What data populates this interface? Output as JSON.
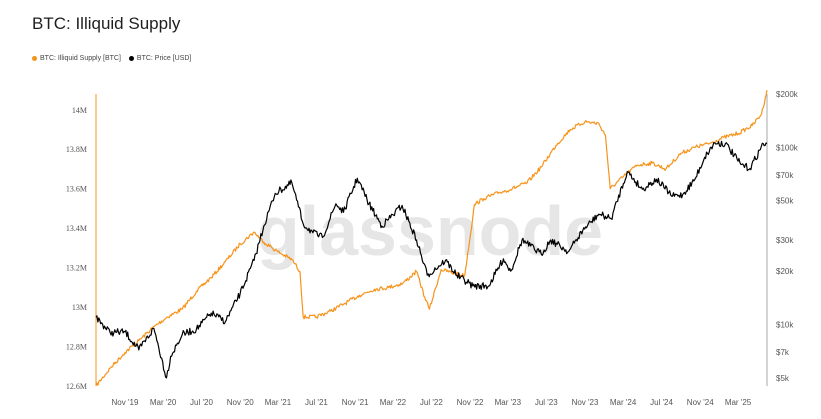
{
  "title": "BTC: Illiquid Supply",
  "watermark": "glassnode",
  "chart_data": {
    "type": "line",
    "title": "BTC: Illiquid Supply",
    "legend_position": "top-left",
    "grid": false,
    "x_ticks": [
      "Nov '19",
      "Mar '20",
      "Jul '20",
      "Nov '20",
      "Mar '21",
      "Jul '21",
      "Nov '21",
      "Mar '22",
      "Jul '22",
      "Nov '22",
      "Mar '23",
      "Jul '23",
      "Nov '23",
      "Mar '24",
      "Jul '24",
      "Nov '24",
      "Mar '25"
    ],
    "x_tick_dates": [
      "2019-11-01",
      "2020-03-01",
      "2020-07-01",
      "2020-11-01",
      "2021-03-01",
      "2021-07-01",
      "2021-11-01",
      "2022-03-01",
      "2022-07-01",
      "2022-11-01",
      "2023-03-01",
      "2023-07-01",
      "2023-11-01",
      "2024-03-01",
      "2024-07-01",
      "2024-11-01",
      "2025-03-01"
    ],
    "x_range": [
      "2019-08-01",
      "2025-06-01"
    ],
    "y_left": {
      "ticks": [
        12600000,
        12800000,
        13000000,
        13200000,
        13400000,
        13600000,
        13800000,
        14000000
      ],
      "tick_labels": [
        "12.6M",
        "12.8M",
        "13M",
        "13.2M",
        "13.4M",
        "13.6M",
        "13.8M",
        "14M"
      ],
      "range": [
        12600000,
        14080000
      ]
    },
    "y_right": {
      "scale": "log",
      "ticks": [
        5000,
        7000,
        10000,
        20000,
        30000,
        50000,
        70000,
        100000,
        200000
      ],
      "tick_labels": [
        "$5k",
        "$7k",
        "$10k",
        "$20k",
        "$30k",
        "$50k",
        "$70k",
        "$100k",
        "$200k"
      ],
      "range": [
        4500,
        200000
      ]
    },
    "series": [
      {
        "name": "BTC: Illiquid Supply [BTC]",
        "color": "#f7931a",
        "axis": "left",
        "x": [
          "2019-08-01",
          "2019-09-15",
          "2019-11-01",
          "2019-12-15",
          "2020-02-01",
          "2020-03-15",
          "2020-05-01",
          "2020-06-15",
          "2020-08-01",
          "2020-09-15",
          "2020-11-01",
          "2020-12-15",
          "2021-01-15",
          "2021-03-01",
          "2021-04-15",
          "2021-05-10",
          "2021-05-20",
          "2021-07-01",
          "2021-08-15",
          "2021-10-01",
          "2021-11-15",
          "2022-01-01",
          "2022-02-15",
          "2022-04-01",
          "2022-05-15",
          "2022-06-10",
          "2022-06-25",
          "2022-08-01",
          "2022-09-15",
          "2022-10-15",
          "2022-11-15",
          "2022-12-15",
          "2023-02-01",
          "2023-03-15",
          "2023-05-01",
          "2023-06-15",
          "2023-08-01",
          "2023-09-15",
          "2023-11-01",
          "2023-12-15",
          "2024-01-05",
          "2024-01-20",
          "2024-03-01",
          "2024-04-15",
          "2024-06-01",
          "2024-07-15",
          "2024-09-01",
          "2024-10-15",
          "2024-12-01",
          "2025-01-15",
          "2025-03-01",
          "2025-04-15",
          "2025-05-15",
          "2025-06-01"
        ],
        "values": [
          12600000,
          12690000,
          12770000,
          12830000,
          12900000,
          12950000,
          12990000,
          13080000,
          13150000,
          13230000,
          13320000,
          13380000,
          13330000,
          13280000,
          13240000,
          13180000,
          12950000,
          12950000,
          12980000,
          13020000,
          13060000,
          13090000,
          13100000,
          13120000,
          13180000,
          13050000,
          12990000,
          13190000,
          13170000,
          13160000,
          13520000,
          13550000,
          13580000,
          13600000,
          13630000,
          13710000,
          13820000,
          13900000,
          13940000,
          13930000,
          13870000,
          13600000,
          13660000,
          13720000,
          13730000,
          13700000,
          13780000,
          13810000,
          13830000,
          13860000,
          13880000,
          13920000,
          13980000,
          14100000
        ]
      },
      {
        "name": "BTC: Price [USD]",
        "color": "#000000",
        "axis": "right",
        "x": [
          "2019-08-01",
          "2019-09-15",
          "2019-11-01",
          "2019-12-15",
          "2020-02-01",
          "2020-03-12",
          "2020-03-25",
          "2020-05-01",
          "2020-06-15",
          "2020-08-01",
          "2020-09-15",
          "2020-11-01",
          "2020-12-15",
          "2021-01-15",
          "2021-02-20",
          "2021-04-14",
          "2021-05-20",
          "2021-06-20",
          "2021-07-20",
          "2021-09-01",
          "2021-09-25",
          "2021-11-08",
          "2021-12-15",
          "2022-01-25",
          "2022-03-30",
          "2022-05-15",
          "2022-06-18",
          "2022-08-15",
          "2022-09-20",
          "2022-11-10",
          "2022-12-30",
          "2023-02-15",
          "2023-03-10",
          "2023-04-15",
          "2023-06-15",
          "2023-07-15",
          "2023-09-10",
          "2023-10-25",
          "2023-12-15",
          "2024-01-23",
          "2024-03-14",
          "2024-05-01",
          "2024-06-15",
          "2024-08-05",
          "2024-09-06",
          "2024-10-15",
          "2024-11-15",
          "2024-12-17",
          "2025-01-20",
          "2025-03-10",
          "2025-04-08",
          "2025-05-20",
          "2025-06-01"
        ],
        "values": [
          11000,
          9000,
          9100,
          7200,
          9500,
          5000,
          6600,
          8800,
          9400,
          11600,
          10400,
          15000,
          23000,
          36000,
          55000,
          63000,
          37000,
          33000,
          31000,
          48000,
          43000,
          67000,
          48000,
          36000,
          47000,
          30000,
          19000,
          23000,
          19000,
          16500,
          16500,
          23500,
          20000,
          30000,
          25000,
          30000,
          25800,
          34000,
          42000,
          39500,
          73000,
          58000,
          66000,
          53000,
          54000,
          66000,
          88000,
          106000,
          105000,
          80000,
          76000,
          105000,
          105000
        ]
      }
    ]
  }
}
